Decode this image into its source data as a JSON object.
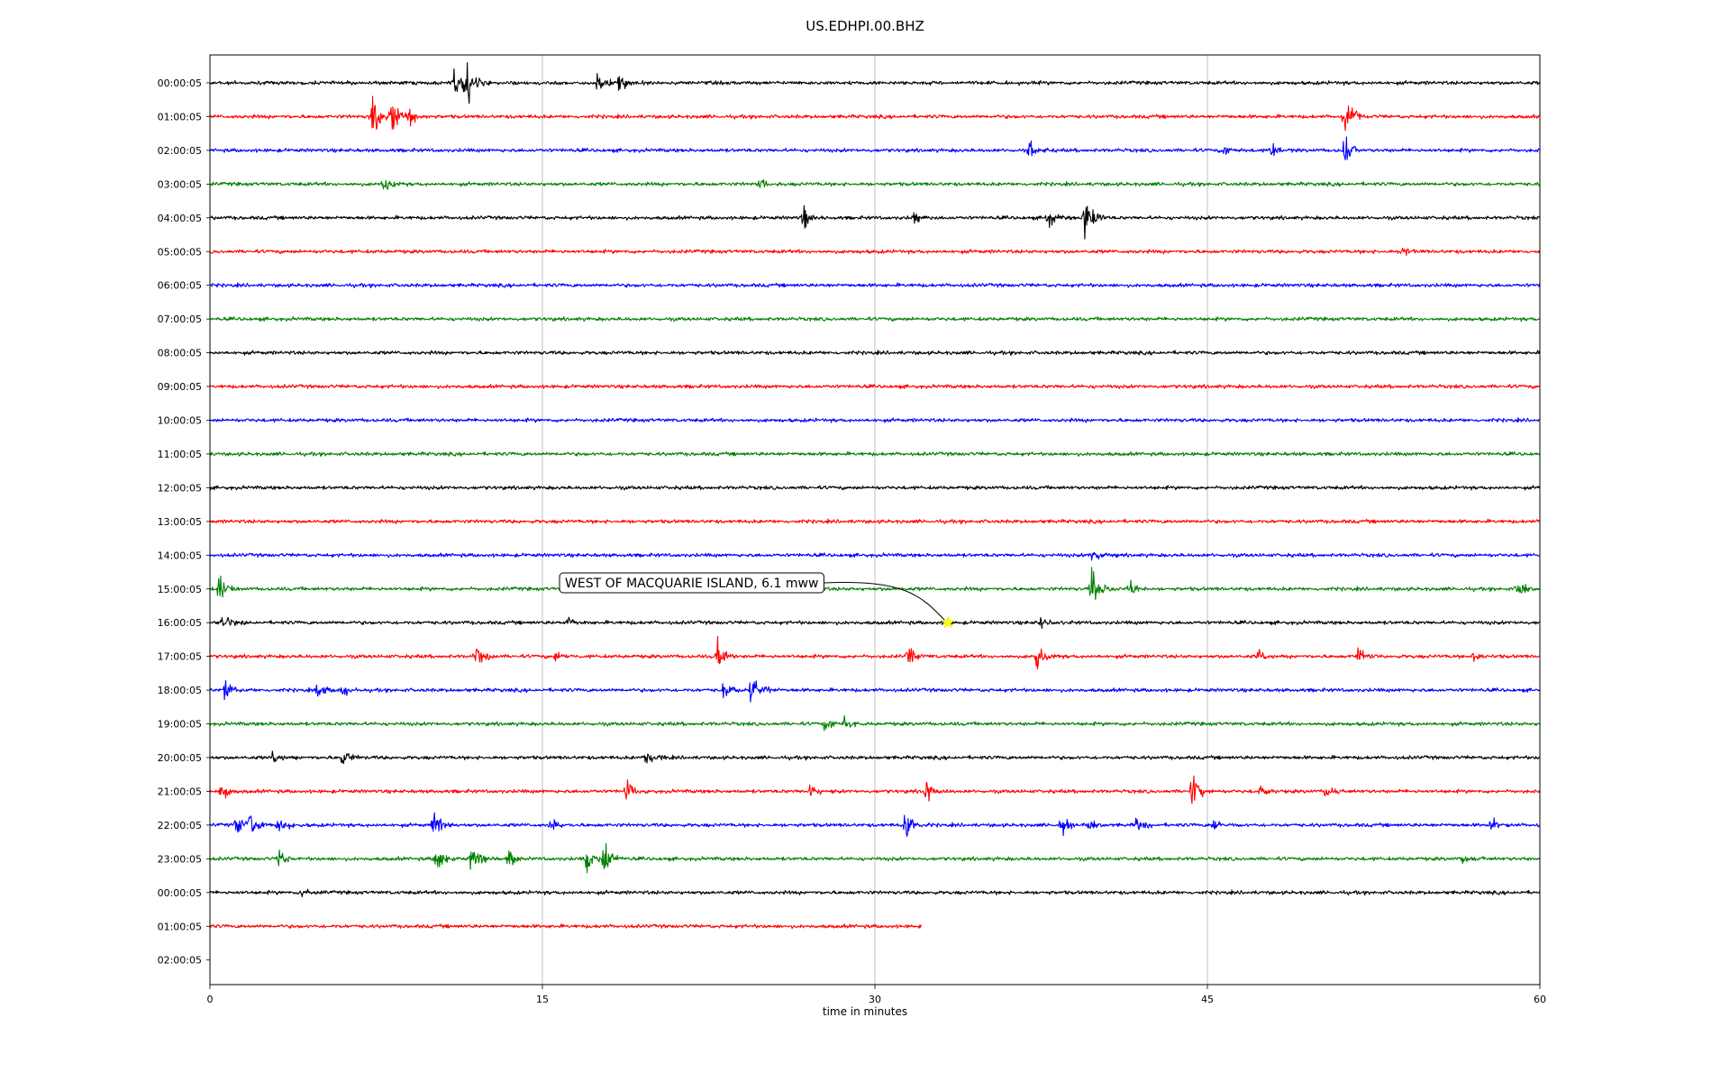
{
  "chart_data": {
    "type": "line",
    "title": "US.EDHPI.00.BHZ",
    "xlabel": "time in minutes",
    "xlim": [
      0,
      60
    ],
    "x_ticks": [
      0,
      15,
      30,
      45,
      60
    ],
    "x_tick_labels": [
      "0",
      "15",
      "30",
      "45",
      "60"
    ],
    "grid": "vertical lines at x ticks",
    "row_colors": [
      "#000000",
      "#ff0000",
      "#0000ff",
      "#008000"
    ],
    "rows": [
      {
        "label": "00:00:05",
        "end_minute": 60,
        "events": [
          {
            "t": 11.5,
            "amp": 2.0
          },
          {
            "t": 11.0,
            "amp": 0.7
          },
          {
            "t": 17.5,
            "amp": 0.9
          },
          {
            "t": 18.5,
            "amp": 0.8
          }
        ]
      },
      {
        "label": "01:00:05",
        "end_minute": 60,
        "events": [
          {
            "t": 7.3,
            "amp": 1.5
          },
          {
            "t": 8.2,
            "amp": 1.3
          },
          {
            "t": 9.0,
            "amp": 0.5
          },
          {
            "t": 51.2,
            "amp": 1.2
          }
        ]
      },
      {
        "label": "02:00:05",
        "end_minute": 60,
        "events": [
          {
            "t": 37.0,
            "amp": 0.6
          },
          {
            "t": 45.7,
            "amp": 0.5
          },
          {
            "t": 47.9,
            "amp": 0.5
          },
          {
            "t": 51.2,
            "amp": 0.9
          }
        ]
      },
      {
        "label": "03:00:05",
        "end_minute": 60,
        "events": [
          {
            "t": 7.8,
            "amp": 0.6
          },
          {
            "t": 24.8,
            "amp": 0.3
          }
        ]
      },
      {
        "label": "04:00:05",
        "end_minute": 60,
        "events": [
          {
            "t": 26.8,
            "amp": 0.7
          },
          {
            "t": 31.8,
            "amp": 0.4
          },
          {
            "t": 37.8,
            "amp": 0.6
          },
          {
            "t": 39.5,
            "amp": 2.0
          }
        ]
      },
      {
        "label": "05:00:05",
        "end_minute": 60,
        "events": [
          {
            "t": 53.8,
            "amp": 0.4
          }
        ]
      },
      {
        "label": "06:00:05",
        "end_minute": 60,
        "events": []
      },
      {
        "label": "07:00:05",
        "end_minute": 60,
        "events": []
      },
      {
        "label": "08:00:05",
        "end_minute": 60,
        "events": []
      },
      {
        "label": "09:00:05",
        "end_minute": 60,
        "events": []
      },
      {
        "label": "10:00:05",
        "end_minute": 60,
        "events": []
      },
      {
        "label": "11:00:05",
        "end_minute": 60,
        "events": []
      },
      {
        "label": "12:00:05",
        "end_minute": 60,
        "events": []
      },
      {
        "label": "13:00:05",
        "end_minute": 60,
        "events": []
      },
      {
        "label": "14:00:05",
        "end_minute": 60,
        "events": [
          {
            "t": 39.8,
            "amp": 0.6
          }
        ]
      },
      {
        "label": "15:00:05",
        "end_minute": 60,
        "events": [
          {
            "t": 0.4,
            "amp": 1.0
          },
          {
            "t": 39.8,
            "amp": 1.5
          },
          {
            "t": 41.5,
            "amp": 0.6
          },
          {
            "t": 59.0,
            "amp": 0.6
          }
        ]
      },
      {
        "label": "16:00:05",
        "end_minute": 60,
        "events": [
          {
            "t": 0.6,
            "amp": 0.5
          },
          {
            "t": 16.1,
            "amp": 0.5
          },
          {
            "t": 37.5,
            "amp": 0.4
          }
        ]
      },
      {
        "label": "17:00:05",
        "end_minute": 60,
        "events": [
          {
            "t": 12.0,
            "amp": 0.7
          },
          {
            "t": 15.6,
            "amp": 0.4
          },
          {
            "t": 22.9,
            "amp": 1.0
          },
          {
            "t": 31.5,
            "amp": 0.6
          },
          {
            "t": 37.3,
            "amp": 0.8
          },
          {
            "t": 47.3,
            "amp": 0.5
          },
          {
            "t": 51.8,
            "amp": 0.6
          },
          {
            "t": 57.0,
            "amp": 0.5
          }
        ]
      },
      {
        "label": "18:00:05",
        "end_minute": 60,
        "events": [
          {
            "t": 0.7,
            "amp": 0.7
          },
          {
            "t": 4.9,
            "amp": 0.6
          },
          {
            "t": 6.0,
            "amp": 0.4
          },
          {
            "t": 23.2,
            "amp": 0.6
          },
          {
            "t": 24.4,
            "amp": 0.8
          },
          {
            "t": 24.9,
            "amp": 0.5
          }
        ]
      },
      {
        "label": "19:00:05",
        "end_minute": 60,
        "events": [
          {
            "t": 27.8,
            "amp": 0.6
          },
          {
            "t": 28.6,
            "amp": 0.5
          }
        ]
      },
      {
        "label": "20:00:05",
        "end_minute": 60,
        "events": [
          {
            "t": 2.8,
            "amp": 0.6
          },
          {
            "t": 6.0,
            "amp": 0.6
          },
          {
            "t": 19.7,
            "amp": 0.6
          }
        ]
      },
      {
        "label": "21:00:05",
        "end_minute": 60,
        "events": [
          {
            "t": 0.5,
            "amp": 0.7
          },
          {
            "t": 18.8,
            "amp": 0.6
          },
          {
            "t": 27.1,
            "amp": 0.4
          },
          {
            "t": 32.3,
            "amp": 0.7
          },
          {
            "t": 44.3,
            "amp": 1.0
          },
          {
            "t": 47.4,
            "amp": 0.4
          },
          {
            "t": 50.3,
            "amp": 0.4
          }
        ]
      },
      {
        "label": "22:00:05",
        "end_minute": 60,
        "events": [
          {
            "t": 1.2,
            "amp": 0.7
          },
          {
            "t": 1.8,
            "amp": 0.8
          },
          {
            "t": 3.1,
            "amp": 0.7
          },
          {
            "t": 10.1,
            "amp": 0.8
          },
          {
            "t": 15.4,
            "amp": 0.4
          },
          {
            "t": 31.4,
            "amp": 0.9
          },
          {
            "t": 38.4,
            "amp": 0.5
          },
          {
            "t": 39.6,
            "amp": 0.4
          },
          {
            "t": 41.8,
            "amp": 0.4
          },
          {
            "t": 45.3,
            "amp": 0.5
          },
          {
            "t": 57.8,
            "amp": 0.5
          }
        ]
      },
      {
        "label": "23:00:05",
        "end_minute": 60,
        "events": [
          {
            "t": 3.1,
            "amp": 0.6
          },
          {
            "t": 10.2,
            "amp": 0.8
          },
          {
            "t": 11.8,
            "amp": 1.0
          },
          {
            "t": 13.5,
            "amp": 0.7
          },
          {
            "t": 17.0,
            "amp": 0.9
          },
          {
            "t": 17.8,
            "amp": 1.1
          },
          {
            "t": 56.5,
            "amp": 0.3
          }
        ]
      },
      {
        "label": "00:00:05",
        "end_minute": 60,
        "events": [
          {
            "t": 4.1,
            "amp": 0.3
          }
        ]
      },
      {
        "label": "01:00:05",
        "end_minute": 32.1,
        "events": []
      },
      {
        "label": "02:00:05",
        "end_minute": 0,
        "events": []
      }
    ],
    "annotations": [
      {
        "text": "WEST OF MACQUARIE ISLAND, 6.1 mww",
        "row": 16,
        "minute": 33.3,
        "marker": "star",
        "marker_color": "#ffff00"
      }
    ]
  }
}
